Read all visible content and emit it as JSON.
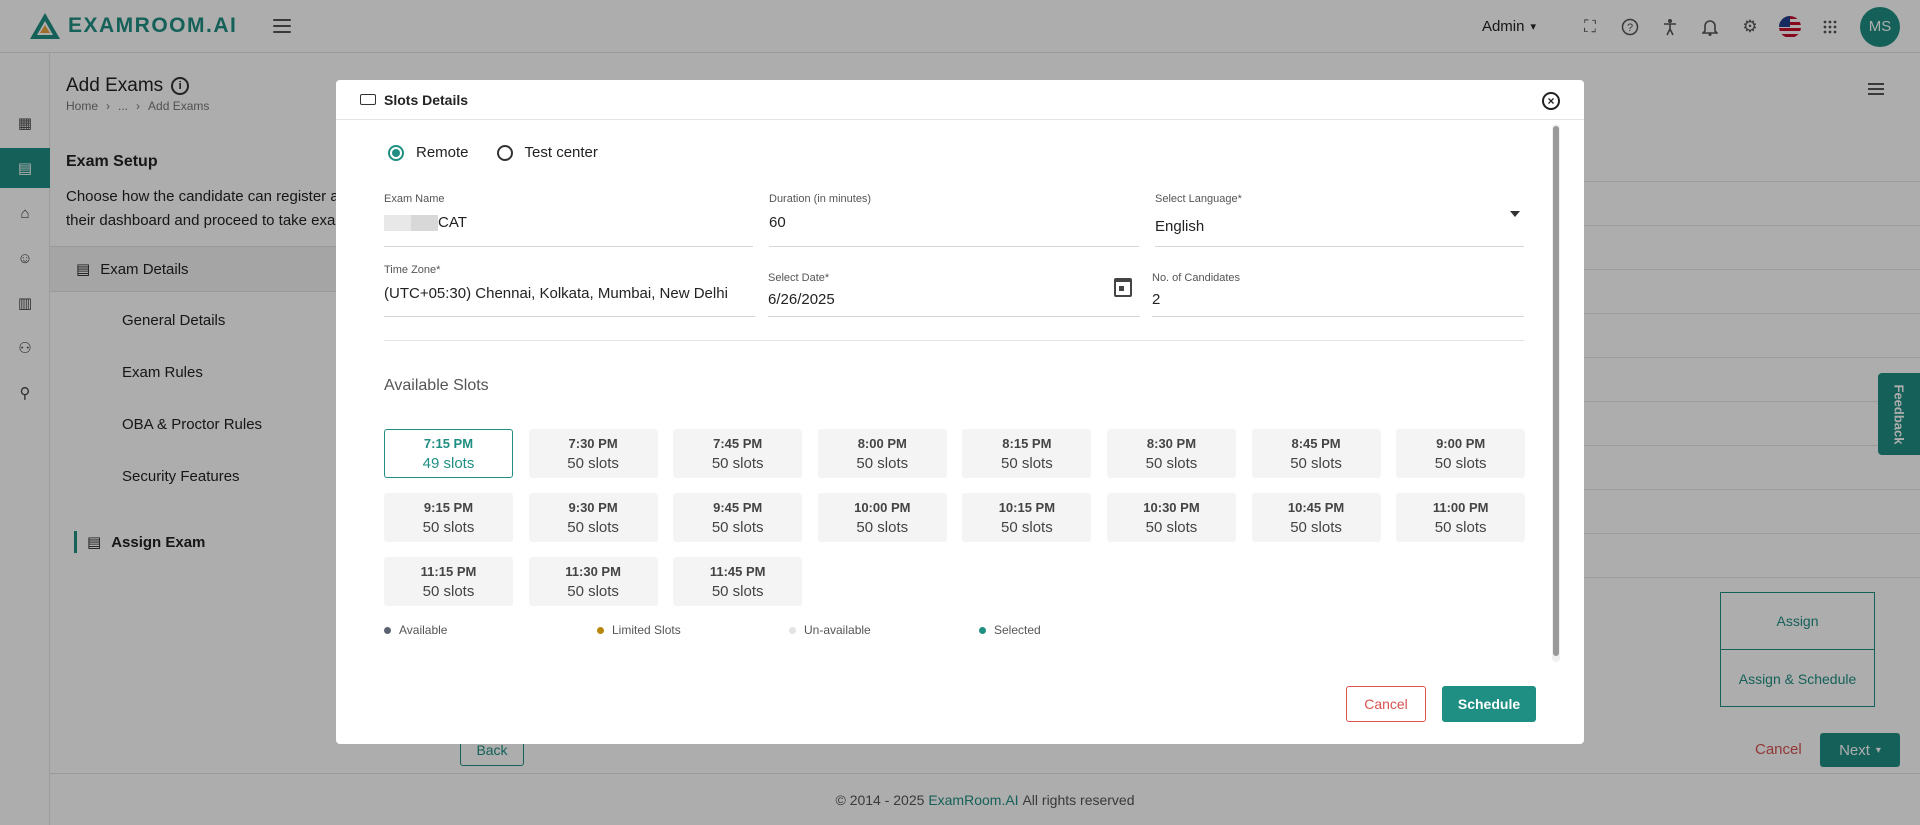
{
  "app": {
    "brand": "EXAMROOM.AI",
    "accent": "#1f8f83",
    "user_menu_label": "Admin",
    "avatar_initials": "MS"
  },
  "page": {
    "title": "Add Exams",
    "breadcrumb": [
      "Home",
      "...",
      "Add Exams"
    ],
    "setup_title": "Exam Setup",
    "setup_desc": "Choose how the candidate can register and their dashboard and proceed to take exam",
    "exam_details_label": "Exam Details",
    "sub_items": [
      "General Details",
      "Exam Rules",
      "OBA & Proctor Rules",
      "Security Features"
    ],
    "assign_exam_label": "Assign Exam",
    "assign_menu": [
      "Assign",
      "Assign & Schedule"
    ],
    "back_label": "Back",
    "cancel_label": "Cancel",
    "next_label": "Next",
    "feedback_label": "Feedback",
    "footer_prefix": "© 2014 - 2025",
    "footer_brand": "ExamRoom.AI",
    "footer_suffix": "All rights reserved"
  },
  "modal": {
    "title": "Slots Details",
    "mode_options": [
      {
        "label": "Remote",
        "selected": true
      },
      {
        "label": "Test center",
        "selected": false
      }
    ],
    "fields": {
      "exam_name": {
        "label": "Exam Name",
        "value": "CAT"
      },
      "duration": {
        "label": "Duration (in minutes)",
        "value": "60"
      },
      "language": {
        "label": "Select Language*",
        "value": "English"
      },
      "time_zone": {
        "label": "Time Zone*",
        "value": "(UTC+05:30) Chennai, Kolkata, Mumbai, New Delhi"
      },
      "date": {
        "label": "Select Date*",
        "value": "6/26/2025"
      },
      "candidates": {
        "label": "No. of Candidates",
        "value": "2"
      }
    },
    "available_slots_title": "Available Slots",
    "slots": [
      {
        "time": "7:15 PM",
        "count": "49 slots",
        "selected": true
      },
      {
        "time": "7:30 PM",
        "count": "50 slots",
        "selected": false
      },
      {
        "time": "7:45 PM",
        "count": "50 slots",
        "selected": false
      },
      {
        "time": "8:00 PM",
        "count": "50 slots",
        "selected": false
      },
      {
        "time": "8:15 PM",
        "count": "50 slots",
        "selected": false
      },
      {
        "time": "8:30 PM",
        "count": "50 slots",
        "selected": false
      },
      {
        "time": "8:45 PM",
        "count": "50 slots",
        "selected": false
      },
      {
        "time": "9:00 PM",
        "count": "50 slots",
        "selected": false
      },
      {
        "time": "9:15 PM",
        "count": "50 slots",
        "selected": false
      },
      {
        "time": "9:30 PM",
        "count": "50 slots",
        "selected": false
      },
      {
        "time": "9:45 PM",
        "count": "50 slots",
        "selected": false
      },
      {
        "time": "10:00 PM",
        "count": "50 slots",
        "selected": false
      },
      {
        "time": "10:15 PM",
        "count": "50 slots",
        "selected": false
      },
      {
        "time": "10:30 PM",
        "count": "50 slots",
        "selected": false
      },
      {
        "time": "10:45 PM",
        "count": "50 slots",
        "selected": false
      },
      {
        "time": "11:00 PM",
        "count": "50 slots",
        "selected": false
      },
      {
        "time": "11:15 PM",
        "count": "50 slots",
        "selected": false
      },
      {
        "time": "11:30 PM",
        "count": "50 slots",
        "selected": false
      },
      {
        "time": "11:45 PM",
        "count": "50 slots",
        "selected": false
      }
    ],
    "legend": [
      {
        "label": "Available",
        "color": "#5a6272"
      },
      {
        "label": "Limited Slots",
        "color": "#b8860b"
      },
      {
        "label": "Un-available",
        "color": "#e3e3e3"
      },
      {
        "label": "Selected",
        "color": "#1f8f83"
      }
    ],
    "cancel_label": "Cancel",
    "schedule_label": "Schedule"
  }
}
